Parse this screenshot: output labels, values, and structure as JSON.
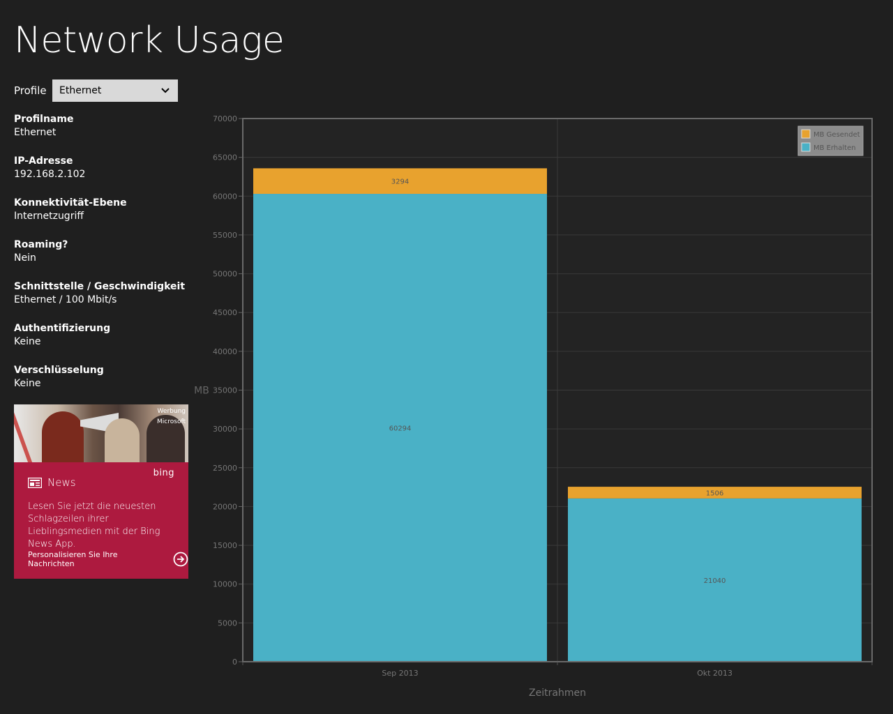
{
  "app": {
    "title": "Network Usage"
  },
  "profile": {
    "label": "Profile",
    "selected": "Ethernet"
  },
  "info": [
    {
      "label": "Profilname",
      "value": "Ethernet"
    },
    {
      "label": "IP-Adresse",
      "value": "192.168.2.102"
    },
    {
      "label": "Konnektivität-Ebene",
      "value": "Internetzugriff"
    },
    {
      "label": "Roaming?",
      "value": "Nein"
    },
    {
      "label": "Schnittstelle / Geschwindigkeit",
      "value": "Ethernet / 100 Mbit/s"
    },
    {
      "label": "Authentifizierung",
      "value": "Keine"
    },
    {
      "label": "Verschlüsselung",
      "value": "Keine"
    }
  ],
  "ad": {
    "tag": "Werbung",
    "advertiser": "Microsoft",
    "brand": "bing",
    "heading": "News",
    "text": "Lesen Sie jetzt die neuesten Schlagzeilen ihrer Lieblingsmedien mit der Bing News App.",
    "cta": "Personalisieren Sie Ihre Nachrichten"
  },
  "icons": {
    "dropdown": "chevron-down-icon",
    "news": "news-icon",
    "cta": "arrow-right-circle-icon"
  },
  "colors": {
    "background": "#1f1f1f",
    "sent": "#e8a22e",
    "received": "#4ab1c6",
    "ad": "#ad1a3f"
  },
  "chart_data": {
    "type": "bar",
    "stacked": true,
    "categories": [
      "Sep 2013",
      "Okt 2013"
    ],
    "series": [
      {
        "name": "MB Erhalten",
        "values": [
          60294,
          21040
        ],
        "color": "#4ab1c6"
      },
      {
        "name": "MB Gesendet",
        "values": [
          3294,
          1506
        ],
        "color": "#e8a22e"
      }
    ],
    "xlabel": "Zeitrahmen",
    "ylabel": "MB",
    "ylim": [
      0,
      70000
    ],
    "yticks": [
      0,
      5000,
      10000,
      15000,
      20000,
      25000,
      30000,
      35000,
      40000,
      45000,
      50000,
      55000,
      60000,
      65000,
      70000
    ],
    "grid": true,
    "legend": {
      "position": "top-right",
      "entries": [
        "MB Gesendet",
        "MB Erhalten"
      ]
    }
  }
}
